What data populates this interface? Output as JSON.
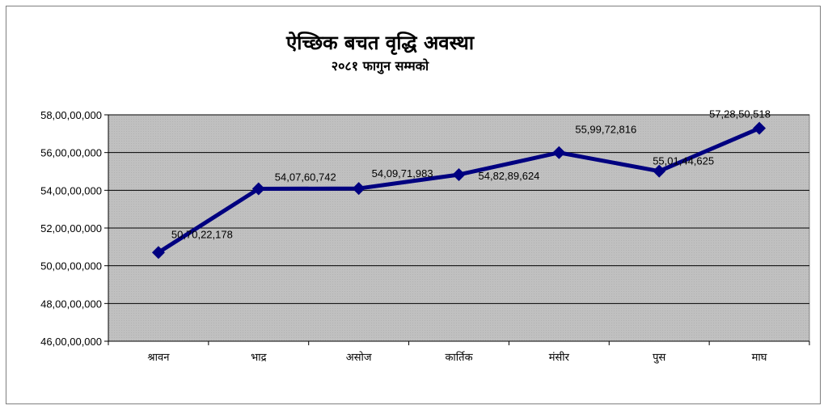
{
  "chart_data": {
    "type": "line",
    "title": "ऐच्छिक बचत वृद्धि अवस्था",
    "subtitle": "२०८१ फागुन सम्मको",
    "xlabel": "",
    "ylabel": "",
    "categories": [
      "श्रावन",
      "भाद्र",
      "असोज",
      "कार्तिक",
      "मंसीर",
      "पुस",
      "माघ"
    ],
    "series": [
      {
        "values": [
          507022178,
          540760742,
          540971983,
          548289624,
          559972816,
          550144625,
          572850518
        ],
        "labels": [
          "50,70,22,178",
          "54,07,60,742",
          "54,09,71,983",
          "54,82,89,624",
          "55,99,72,816",
          "55,01,44,625",
          "57,28,50,518"
        ]
      }
    ],
    "ylim": [
      460000000,
      580000000
    ],
    "yticks": [
      460000000,
      480000000,
      500000000,
      520000000,
      540000000,
      560000000,
      580000000
    ],
    "ytick_labels": [
      "46,00,00,000",
      "48,00,00,000",
      "50,00,00,000",
      "52,00,00,000",
      "54,00,00,000",
      "56,00,00,000",
      "58,00,00,000"
    ],
    "grid": true,
    "legend": "none",
    "colors": {
      "line": "#000080",
      "plot_bg": "#c0c0c0",
      "grid": "#000000"
    }
  }
}
